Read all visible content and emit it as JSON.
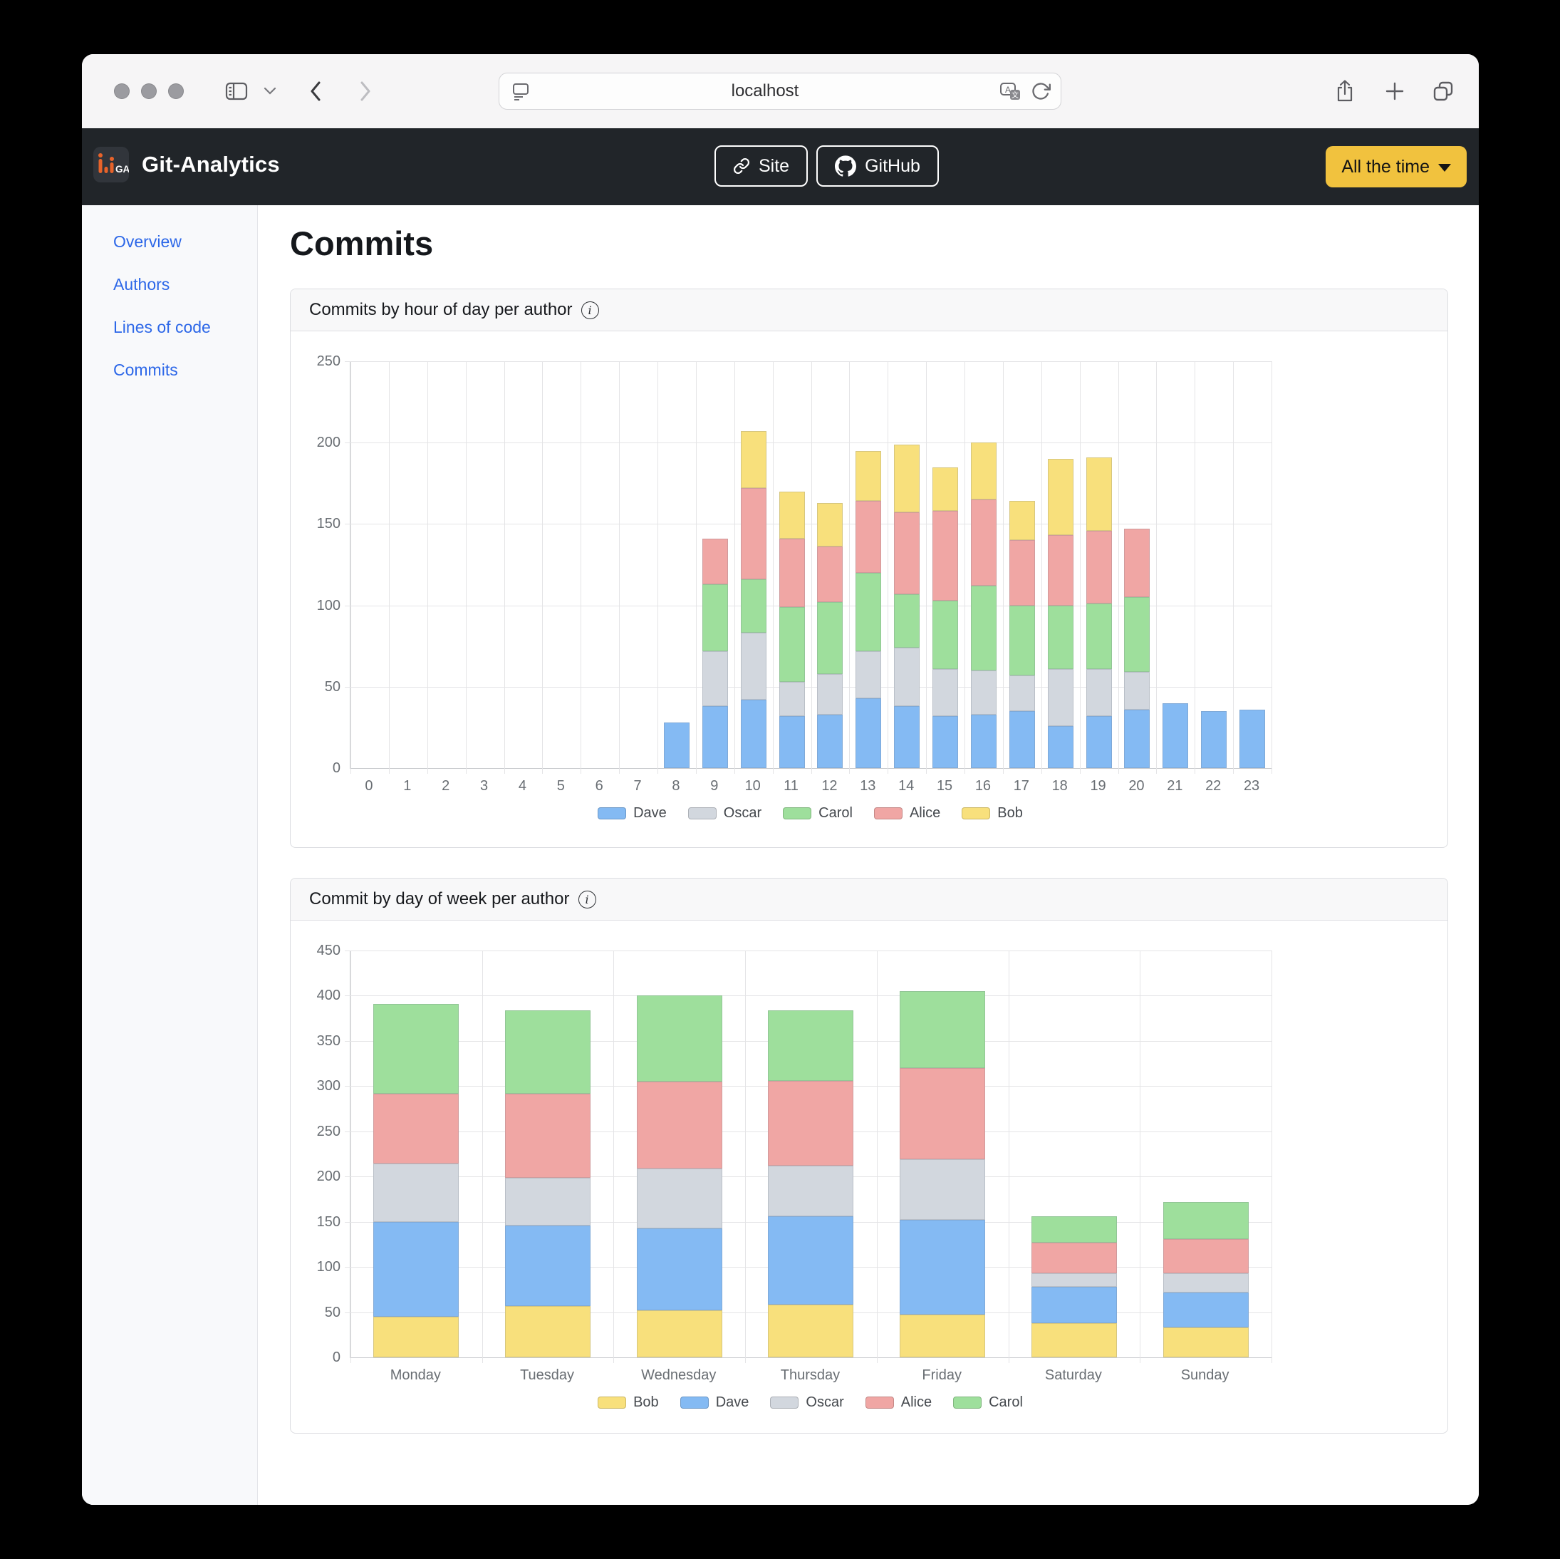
{
  "browser": {
    "address": "localhost"
  },
  "navbar": {
    "logo_text": "GA",
    "brand": "Git-Analytics",
    "site_button": "Site",
    "github_button": "GitHub",
    "time_filter": "All the time"
  },
  "sidebar": {
    "items": [
      {
        "label": "Overview"
      },
      {
        "label": "Authors"
      },
      {
        "label": "Lines of code"
      },
      {
        "label": "Commits"
      }
    ]
  },
  "page": {
    "title": "Commits"
  },
  "colors": {
    "accent_yellow": "#f1c23e",
    "link_blue": "#2c67e8",
    "brand_orange": "#e8632a",
    "navbar_dark": "#212529"
  },
  "chart_data": [
    {
      "type": "bar",
      "stacked": true,
      "title": "Commits by hour of day per author",
      "categories": [
        "0",
        "1",
        "2",
        "3",
        "4",
        "5",
        "6",
        "7",
        "8",
        "9",
        "10",
        "11",
        "12",
        "13",
        "14",
        "15",
        "16",
        "17",
        "18",
        "19",
        "20",
        "21",
        "22",
        "23"
      ],
      "series": [
        {
          "name": "Dave",
          "color": "#84baf3",
          "values": [
            0,
            0,
            0,
            0,
            0,
            0,
            0,
            0,
            28,
            38,
            42,
            32,
            33,
            43,
            38,
            32,
            33,
            35,
            26,
            32,
            36,
            40,
            35,
            36
          ]
        },
        {
          "name": "Oscar",
          "color": "#d2d7de",
          "values": [
            0,
            0,
            0,
            0,
            0,
            0,
            0,
            0,
            0,
            34,
            41,
            21,
            25,
            29,
            36,
            29,
            27,
            22,
            35,
            29,
            23,
            0,
            0,
            0
          ]
        },
        {
          "name": "Carol",
          "color": "#9edf9c",
          "values": [
            0,
            0,
            0,
            0,
            0,
            0,
            0,
            0,
            0,
            41,
            33,
            46,
            44,
            48,
            33,
            42,
            52,
            43,
            39,
            40,
            46,
            0,
            0,
            0
          ]
        },
        {
          "name": "Alice",
          "color": "#f0a6a4",
          "values": [
            0,
            0,
            0,
            0,
            0,
            0,
            0,
            0,
            0,
            28,
            56,
            42,
            34,
            44,
            50,
            55,
            53,
            40,
            43,
            45,
            42,
            0,
            0,
            0
          ]
        },
        {
          "name": "Bob",
          "color": "#f8e07c",
          "values": [
            0,
            0,
            0,
            0,
            0,
            0,
            0,
            0,
            0,
            0,
            35,
            29,
            27,
            31,
            42,
            27,
            35,
            24,
            47,
            45,
            0,
            0,
            0,
            0
          ]
        }
      ],
      "ylim": [
        0,
        250
      ],
      "ytick_step": 50,
      "grid": true,
      "legend_position": "bottom"
    },
    {
      "type": "bar",
      "stacked": true,
      "title": "Commit by day of week per author",
      "categories": [
        "Monday",
        "Tuesday",
        "Wednesday",
        "Thursday",
        "Friday",
        "Saturday",
        "Sunday"
      ],
      "series": [
        {
          "name": "Bob",
          "color": "#f8e07c",
          "values": [
            45,
            57,
            52,
            58,
            47,
            38,
            33
          ]
        },
        {
          "name": "Dave",
          "color": "#84baf3",
          "values": [
            105,
            89,
            91,
            98,
            105,
            40,
            39
          ]
        },
        {
          "name": "Oscar",
          "color": "#d2d7de",
          "values": [
            64,
            53,
            66,
            56,
            67,
            15,
            21
          ]
        },
        {
          "name": "Alice",
          "color": "#f0a6a4",
          "values": [
            78,
            93,
            96,
            94,
            101,
            34,
            38
          ]
        },
        {
          "name": "Carol",
          "color": "#9edf9c",
          "values": [
            99,
            92,
            95,
            78,
            85,
            29,
            41
          ]
        }
      ],
      "ylim": [
        0,
        450
      ],
      "ytick_step": 50,
      "grid": true,
      "legend_position": "bottom"
    }
  ]
}
